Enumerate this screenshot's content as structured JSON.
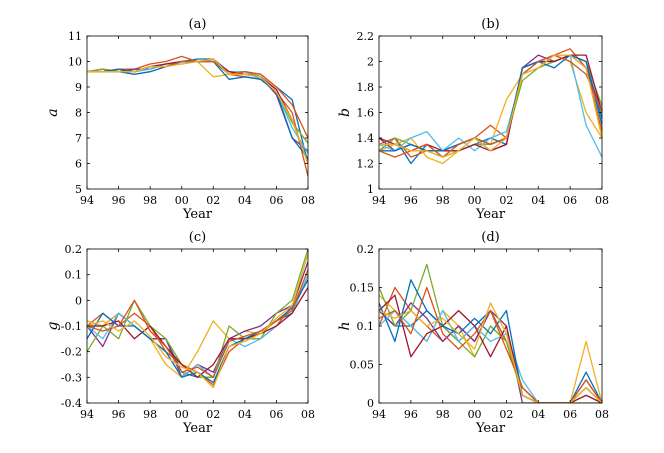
{
  "chart_data": [
    {
      "panel": "a",
      "type": "line",
      "title": "(a)",
      "xlabel": "Year",
      "ylabel": "a",
      "xlim": [
        94,
        108
      ],
      "ylim": [
        5,
        11
      ],
      "xticks": [
        "94",
        "96",
        "98",
        "00",
        "02",
        "04",
        "06",
        "08"
      ],
      "yticks": [
        "5",
        "6",
        "7",
        "8",
        "9",
        "10",
        "11"
      ],
      "grid": false,
      "x": [
        94,
        95,
        96,
        97,
        98,
        99,
        100,
        101,
        102,
        103,
        104,
        105,
        106,
        107,
        108
      ],
      "series": [
        {
          "values": [
            9.6,
            9.7,
            9.6,
            9.5,
            9.6,
            9.8,
            10.0,
            10.1,
            10.1,
            9.6,
            9.6,
            9.5,
            9.0,
            8.5,
            6.0
          ]
        },
        {
          "values": [
            9.6,
            9.6,
            9.7,
            9.7,
            9.9,
            10.0,
            10.2,
            10.0,
            10.1,
            9.5,
            9.4,
            9.3,
            8.8,
            8.0,
            5.5
          ]
        },
        {
          "values": [
            9.6,
            9.6,
            9.6,
            9.6,
            9.8,
            9.9,
            10.0,
            10.0,
            9.4,
            9.5,
            9.6,
            9.4,
            8.9,
            7.6,
            6.8
          ]
        },
        {
          "values": [
            9.6,
            9.7,
            9.6,
            9.7,
            9.7,
            9.9,
            10.0,
            10.0,
            10.0,
            9.6,
            9.5,
            9.4,
            8.7,
            7.0,
            6.5
          ]
        },
        {
          "values": [
            9.6,
            9.7,
            9.6,
            9.6,
            9.8,
            9.8,
            10.0,
            10.0,
            10.0,
            9.6,
            9.6,
            9.4,
            8.8,
            7.6,
            6.8
          ]
        },
        {
          "values": [
            9.6,
            9.6,
            9.6,
            9.6,
            9.7,
            9.9,
            9.9,
            10.0,
            10.0,
            9.6,
            9.6,
            9.3,
            8.8,
            7.4,
            6.4
          ]
        },
        {
          "values": [
            9.6,
            9.6,
            9.6,
            9.6,
            9.8,
            9.9,
            10.0,
            10.0,
            10.0,
            9.6,
            9.5,
            9.4,
            8.9,
            7.7,
            6.0
          ]
        },
        {
          "values": [
            9.6,
            9.6,
            9.7,
            9.6,
            9.8,
            9.8,
            10.0,
            10.0,
            10.0,
            9.3,
            9.4,
            9.3,
            8.8,
            7.0,
            6.2
          ]
        },
        {
          "values": [
            9.6,
            9.6,
            9.6,
            9.6,
            9.8,
            9.8,
            10.0,
            10.0,
            10.0,
            9.5,
            9.6,
            9.5,
            9.0,
            8.3,
            7.0
          ]
        },
        {
          "values": [
            9.6,
            9.6,
            9.6,
            9.6,
            9.8,
            9.8,
            9.9,
            10.0,
            10.1,
            9.5,
            9.5,
            9.4,
            8.8,
            7.7,
            6.0
          ]
        }
      ]
    },
    {
      "panel": "b",
      "type": "line",
      "title": "(b)",
      "xlabel": "Year",
      "ylabel": "b",
      "xlim": [
        94,
        108
      ],
      "ylim": [
        1,
        2.2
      ],
      "xticks": [
        "94",
        "96",
        "98",
        "00",
        "02",
        "04",
        "06",
        "08"
      ],
      "yticks": [
        "1",
        "1.2",
        "1.4",
        "1.6",
        "1.8",
        "2",
        "2.2"
      ],
      "grid": false,
      "x": [
        94,
        95,
        96,
        97,
        98,
        99,
        100,
        101,
        102,
        103,
        104,
        105,
        106,
        107,
        108
      ],
      "series": [
        {
          "values": [
            1.3,
            1.4,
            1.2,
            1.35,
            1.25,
            1.3,
            1.35,
            1.4,
            1.35,
            1.95,
            2.0,
            2.0,
            2.05,
            2.0,
            1.55
          ]
        },
        {
          "values": [
            1.35,
            1.4,
            1.25,
            1.3,
            1.3,
            1.35,
            1.4,
            1.5,
            1.4,
            1.9,
            2.0,
            2.05,
            2.1,
            1.95,
            1.45
          ]
        },
        {
          "values": [
            1.3,
            1.35,
            1.4,
            1.25,
            1.2,
            1.3,
            1.35,
            1.35,
            1.7,
            1.9,
            1.95,
            2.05,
            2.0,
            1.6,
            1.4
          ]
        },
        {
          "values": [
            1.4,
            1.3,
            1.35,
            1.3,
            1.3,
            1.35,
            1.4,
            1.3,
            1.35,
            1.95,
            2.05,
            2.0,
            2.05,
            1.95,
            1.6
          ]
        },
        {
          "values": [
            1.3,
            1.4,
            1.35,
            1.3,
            1.25,
            1.3,
            1.35,
            1.35,
            1.4,
            1.85,
            1.95,
            2.0,
            2.05,
            2.0,
            1.65
          ]
        },
        {
          "values": [
            1.35,
            1.3,
            1.4,
            1.45,
            1.3,
            1.4,
            1.3,
            1.4,
            1.45,
            1.9,
            2.0,
            2.05,
            2.05,
            1.5,
            1.25
          ]
        },
        {
          "values": [
            1.4,
            1.35,
            1.3,
            1.35,
            1.3,
            1.3,
            1.35,
            1.3,
            1.35,
            1.95,
            2.0,
            2.0,
            2.05,
            2.05,
            1.6
          ]
        },
        {
          "values": [
            1.3,
            1.3,
            1.35,
            1.3,
            1.3,
            1.35,
            1.4,
            1.35,
            1.4,
            1.95,
            2.0,
            1.95,
            2.05,
            2.0,
            1.5
          ]
        },
        {
          "values": [
            1.3,
            1.25,
            1.3,
            1.35,
            1.25,
            1.35,
            1.4,
            1.35,
            1.4,
            1.9,
            2.0,
            2.05,
            2.0,
            1.9,
            1.6
          ]
        },
        {
          "values": [
            1.35,
            1.35,
            1.3,
            1.3,
            1.25,
            1.3,
            1.4,
            1.3,
            1.4,
            1.9,
            1.95,
            2.05,
            2.05,
            1.95,
            1.4
          ]
        }
      ]
    },
    {
      "panel": "c",
      "type": "line",
      "title": "(c)",
      "xlabel": "Year",
      "ylabel": "g",
      "xlim": [
        94,
        108
      ],
      "ylim": [
        -0.4,
        0.2
      ],
      "xticks": [
        "94",
        "96",
        "98",
        "00",
        "02",
        "04",
        "06",
        "08"
      ],
      "yticks": [
        "-0.4",
        "-0.3",
        "-0.2",
        "-0.1",
        "0",
        "0.1",
        "0.2"
      ],
      "grid": false,
      "x": [
        94,
        95,
        96,
        97,
        98,
        99,
        100,
        101,
        102,
        103,
        104,
        105,
        106,
        107,
        108
      ],
      "series": [
        {
          "values": [
            -0.1,
            -0.1,
            -0.05,
            -0.1,
            -0.15,
            -0.15,
            -0.28,
            -0.3,
            -0.3,
            -0.15,
            -0.15,
            -0.12,
            -0.08,
            -0.05,
            0.1
          ]
        },
        {
          "values": [
            -0.1,
            -0.05,
            -0.1,
            -0.05,
            -0.1,
            -0.2,
            -0.25,
            -0.28,
            -0.33,
            -0.2,
            -0.15,
            -0.15,
            -0.1,
            -0.02,
            0.08
          ]
        },
        {
          "values": [
            -0.08,
            -0.1,
            -0.05,
            -0.1,
            -0.15,
            -0.25,
            -0.3,
            -0.2,
            -0.08,
            -0.15,
            -0.12,
            -0.13,
            -0.08,
            -0.03,
            0.15
          ]
        },
        {
          "values": [
            -0.1,
            -0.18,
            -0.05,
            -0.1,
            -0.15,
            -0.15,
            -0.3,
            -0.25,
            -0.28,
            -0.15,
            -0.12,
            -0.1,
            -0.05,
            -0.02,
            0.15
          ]
        },
        {
          "values": [
            -0.2,
            -0.1,
            -0.15,
            0.0,
            -0.1,
            -0.15,
            -0.25,
            -0.3,
            -0.3,
            -0.1,
            -0.15,
            -0.15,
            -0.05,
            0.0,
            0.2
          ]
        },
        {
          "values": [
            -0.1,
            -0.15,
            -0.05,
            -0.1,
            -0.15,
            -0.2,
            -0.3,
            -0.25,
            -0.3,
            -0.15,
            -0.18,
            -0.15,
            -0.1,
            -0.05,
            0.1
          ]
        },
        {
          "values": [
            -0.1,
            -0.1,
            -0.08,
            -0.15,
            -0.1,
            -0.18,
            -0.25,
            -0.3,
            -0.25,
            -0.15,
            -0.15,
            -0.13,
            -0.1,
            -0.05,
            0.05
          ]
        },
        {
          "values": [
            -0.15,
            -0.05,
            -0.1,
            -0.1,
            -0.15,
            -0.2,
            -0.3,
            -0.28,
            -0.32,
            -0.18,
            -0.15,
            -0.12,
            -0.08,
            -0.03,
            0.08
          ]
        },
        {
          "values": [
            -0.1,
            -0.12,
            -0.1,
            0.0,
            -0.12,
            -0.18,
            -0.28,
            -0.26,
            -0.3,
            -0.16,
            -0.14,
            -0.12,
            -0.08,
            -0.04,
            0.12
          ]
        },
        {
          "values": [
            -0.1,
            -0.08,
            -0.12,
            -0.08,
            -0.14,
            -0.22,
            -0.26,
            -0.28,
            -0.34,
            -0.18,
            -0.16,
            -0.13,
            -0.07,
            -0.02,
            0.18
          ]
        }
      ]
    },
    {
      "panel": "d",
      "type": "line",
      "title": "(d)",
      "xlabel": "Year",
      "ylabel": "h",
      "xlim": [
        94,
        108
      ],
      "ylim": [
        0,
        0.2
      ],
      "xticks": [
        "94",
        "96",
        "98",
        "00",
        "02",
        "04",
        "06",
        "08"
      ],
      "yticks": [
        "0",
        "0.05",
        "0.1",
        "0.15",
        "0.2"
      ],
      "grid": false,
      "x": [
        94,
        95,
        96,
        97,
        98,
        99,
        100,
        101,
        102,
        103,
        104,
        105,
        106,
        107,
        108
      ],
      "series": [
        {
          "values": [
            0.12,
            0.1,
            0.1,
            0.12,
            0.1,
            0.08,
            0.1,
            0.12,
            0.08,
            0.02,
            0.0,
            0.0,
            0.0,
            0.02,
            0.0
          ]
        },
        {
          "values": [
            0.1,
            0.15,
            0.12,
            0.1,
            0.08,
            0.1,
            0.08,
            0.12,
            0.08,
            0.01,
            0.0,
            0.0,
            0.0,
            0.01,
            0.0
          ]
        },
        {
          "values": [
            0.14,
            0.12,
            0.1,
            0.08,
            0.12,
            0.1,
            0.06,
            0.1,
            0.08,
            0.02,
            0.0,
            0.0,
            0.0,
            0.08,
            0.0
          ]
        },
        {
          "values": [
            0.12,
            0.1,
            0.13,
            0.11,
            0.08,
            0.1,
            0.08,
            0.12,
            0.1,
            0.0,
            0.0,
            0.0,
            0.0,
            0.03,
            0.0
          ]
        },
        {
          "values": [
            0.15,
            0.1,
            0.12,
            0.18,
            0.1,
            0.08,
            0.06,
            0.1,
            0.08,
            0.01,
            0.0,
            0.0,
            0.0,
            0.0,
            0.0
          ]
        },
        {
          "values": [
            0.1,
            0.12,
            0.1,
            0.08,
            0.12,
            0.08,
            0.1,
            0.08,
            0.09,
            0.03,
            0.0,
            0.0,
            0.0,
            0.02,
            0.0
          ]
        },
        {
          "values": [
            0.12,
            0.14,
            0.06,
            0.09,
            0.1,
            0.12,
            0.1,
            0.06,
            0.1,
            0.01,
            0.0,
            0.0,
            0.0,
            0.01,
            0.0
          ]
        },
        {
          "values": [
            0.13,
            0.08,
            0.16,
            0.12,
            0.1,
            0.09,
            0.11,
            0.09,
            0.12,
            0.01,
            0.0,
            0.0,
            0.0,
            0.04,
            0.0
          ]
        },
        {
          "values": [
            0.11,
            0.12,
            0.09,
            0.15,
            0.09,
            0.07,
            0.09,
            0.12,
            0.07,
            0.02,
            0.0,
            0.0,
            0.0,
            0.03,
            0.0
          ]
        },
        {
          "values": [
            0.12,
            0.11,
            0.12,
            0.1,
            0.11,
            0.09,
            0.07,
            0.13,
            0.09,
            0.01,
            0.0,
            0.0,
            0.0,
            0.02,
            0.0
          ]
        }
      ]
    }
  ],
  "colors": {
    "axis": "#000000",
    "series": [
      "#0072BD",
      "#D95319",
      "#EDB120",
      "#7E2F8E",
      "#77AC30",
      "#4DBEEE",
      "#A2142F",
      "#0072BD",
      "#D95319",
      "#EDB120"
    ]
  }
}
